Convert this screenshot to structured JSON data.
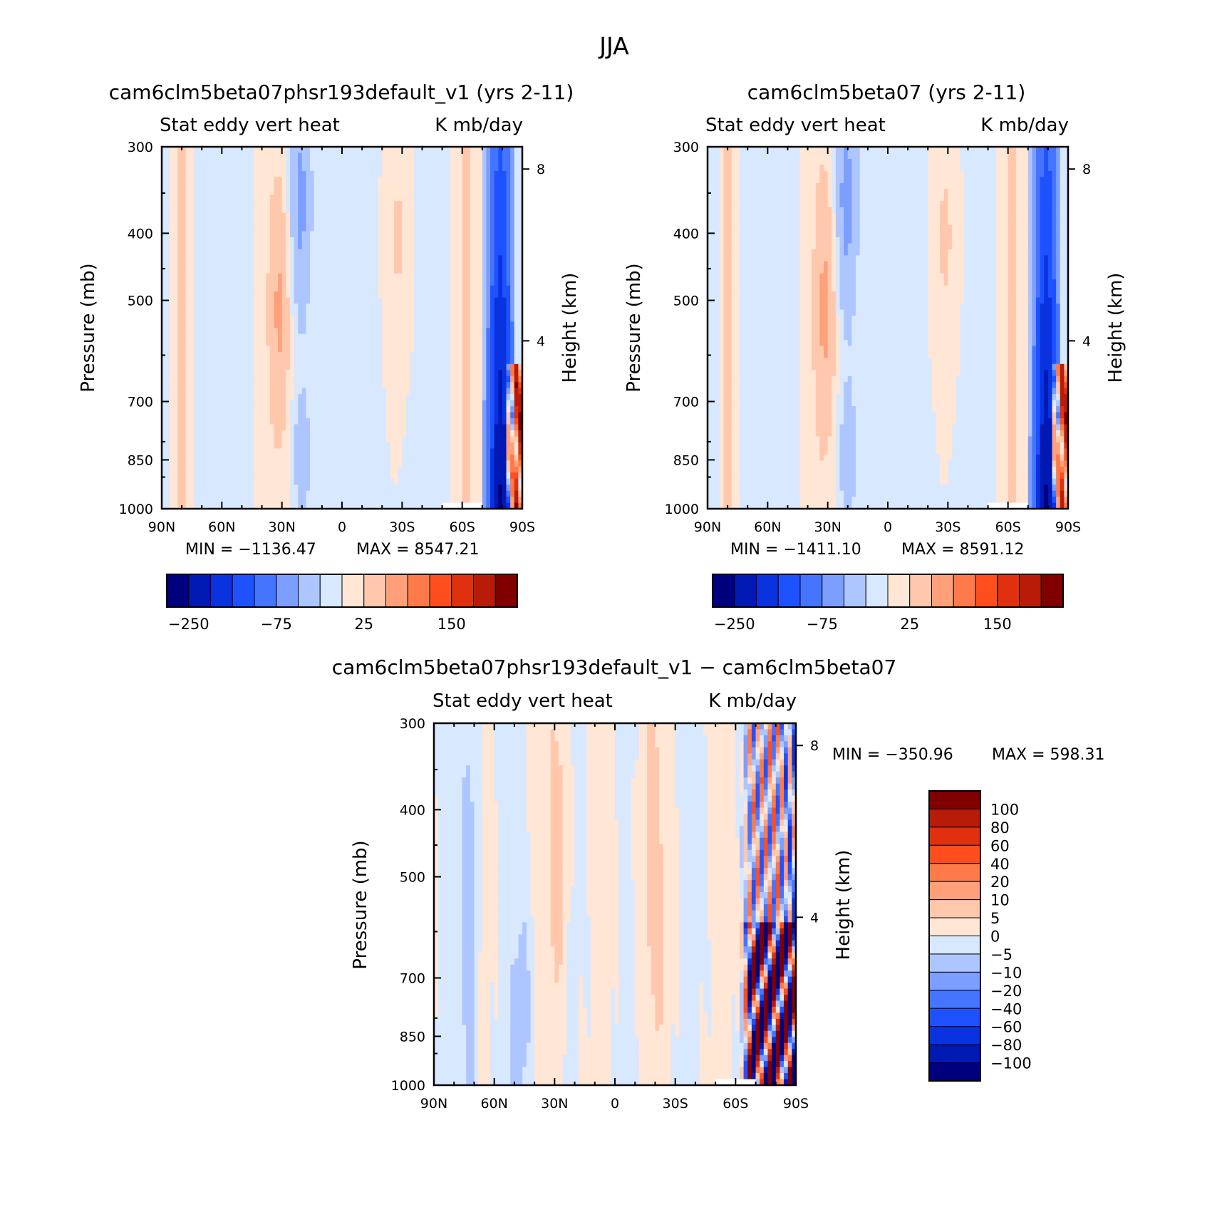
{
  "figure": {
    "title": "JJA"
  },
  "colors": {
    "palette": [
      "#00007f",
      "#0019b3",
      "#0a33e0",
      "#1f52ff",
      "#4575ff",
      "#7c9eff",
      "#aec6ff",
      "#d8e8ff",
      "#ffe6d5",
      "#ffc8ac",
      "#ffa07a",
      "#ff7a4a",
      "#ff4e1e",
      "#e03010",
      "#b81c08",
      "#800000"
    ],
    "missing": "#ffffff",
    "frame": "#000000"
  },
  "chart_data": [
    {
      "type": "heatmap",
      "title": "cam6clm5beta07phsr193default_v1 (yrs 2-11)",
      "subtitle_left": "Stat eddy vert heat",
      "subtitle_right": "K mb/day",
      "ylabel": "Pressure (mb)",
      "ylabel_right": "Height (km)",
      "x_ticks": [
        "90N",
        "60N",
        "30N",
        "0",
        "30S",
        "60S",
        "90S"
      ],
      "y_ticks": [
        "300",
        "400",
        "500",
        "700",
        "850",
        "1000"
      ],
      "y_right_ticks": [
        "8",
        "4"
      ],
      "xlim": [
        90,
        -90
      ],
      "ylim": [
        1000,
        300
      ],
      "min_label": "MIN = −1136.47",
      "max_label": "MAX = 8547.21",
      "min": -1136.47,
      "max": 8547.21,
      "colorbar_orientation": "horizontal",
      "colorbar_labels": [
        "−250",
        "−75",
        "25",
        "150"
      ],
      "variant": "a"
    },
    {
      "type": "heatmap",
      "title": "cam6clm5beta07 (yrs 2-11)",
      "subtitle_left": "Stat eddy vert heat",
      "subtitle_right": "K mb/day",
      "ylabel": "Pressure (mb)",
      "ylabel_right": "Height (km)",
      "x_ticks": [
        "90N",
        "60N",
        "30N",
        "0",
        "30S",
        "60S",
        "90S"
      ],
      "y_ticks": [
        "300",
        "400",
        "500",
        "700",
        "850",
        "1000"
      ],
      "y_right_ticks": [
        "8",
        "4"
      ],
      "xlim": [
        90,
        -90
      ],
      "ylim": [
        1000,
        300
      ],
      "min_label": "MIN = −1411.10",
      "max_label": "MAX = 8591.12",
      "min": -1411.1,
      "max": 8591.12,
      "colorbar_orientation": "horizontal",
      "colorbar_labels": [
        "−250",
        "−75",
        "25",
        "150"
      ],
      "variant": "b"
    },
    {
      "type": "heatmap",
      "title": "cam6clm5beta07phsr193default_v1 − cam6clm5beta07",
      "subtitle_left": "Stat eddy vert heat",
      "subtitle_right": "K mb/day",
      "ylabel": "Pressure (mb)",
      "ylabel_right": "Height (km)",
      "x_ticks": [
        "90N",
        "60N",
        "30N",
        "0",
        "30S",
        "60S",
        "90S"
      ],
      "y_ticks": [
        "300",
        "400",
        "500",
        "700",
        "850",
        "1000"
      ],
      "y_right_ticks": [
        "8",
        "4"
      ],
      "xlim": [
        90,
        -90
      ],
      "ylim": [
        1000,
        300
      ],
      "min_label": "MIN = −350.96",
      "max_label": "MAX = 598.31",
      "min": -350.96,
      "max": 598.31,
      "colorbar_orientation": "vertical",
      "colorbar_labels": [
        "100",
        "80",
        "60",
        "40",
        "20",
        "10",
        "5",
        "0",
        "−5",
        "−10",
        "−20",
        "−40",
        "−60",
        "−80",
        "−100"
      ],
      "variant": "diff"
    }
  ]
}
